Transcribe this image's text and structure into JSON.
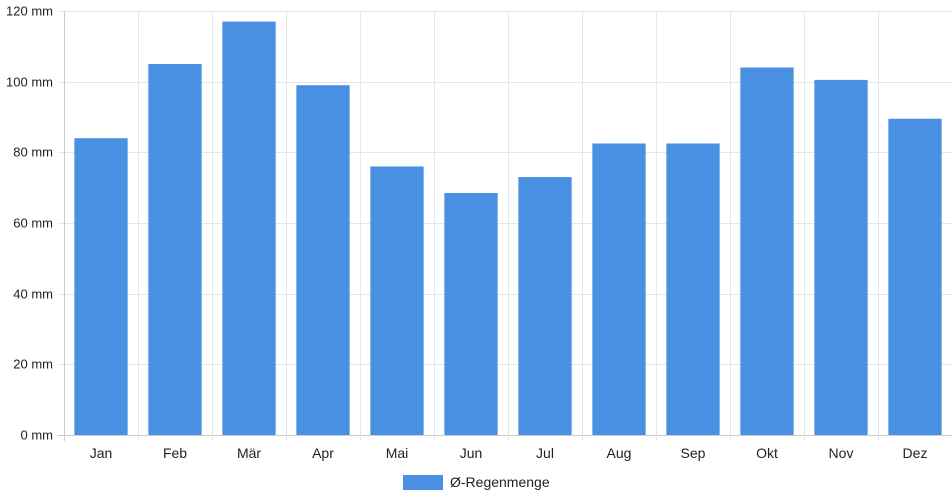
{
  "chart_data": {
    "type": "bar",
    "categories": [
      "Jan",
      "Feb",
      "Mär",
      "Apr",
      "Mai",
      "Jun",
      "Jul",
      "Aug",
      "Sep",
      "Okt",
      "Nov",
      "Dez"
    ],
    "series": [
      {
        "name": "Ø-Regenmenge",
        "values": [
          84,
          105,
          117,
          99,
          76,
          68.5,
          73,
          82.5,
          82.5,
          104,
          100.5,
          89.5
        ]
      }
    ],
    "y_ticks": [
      "0 mm",
      "20 mm",
      "40 mm",
      "60 mm",
      "80 mm",
      "100 mm",
      "120 mm"
    ],
    "ylim": [
      0,
      120
    ],
    "grid": true,
    "legend_position": "bottom-center",
    "colors": {
      "bar": "#4a90e2",
      "grid": "#e6e6e6",
      "axis": "#cccccc"
    }
  }
}
